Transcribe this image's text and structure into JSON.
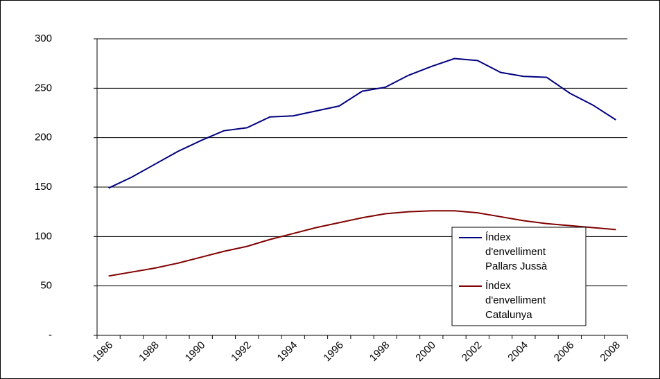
{
  "chart_data": {
    "type": "line",
    "categories": [
      "1986",
      null,
      "1988",
      null,
      "1990",
      null,
      "1992",
      null,
      "1994",
      null,
      "1996",
      null,
      "1998",
      null,
      "2000",
      null,
      "2002",
      null,
      "2004",
      null,
      "2006",
      null,
      "2008"
    ],
    "series": [
      {
        "name": "Índex d'envelliment Pallars Jussà",
        "color": "#000080",
        "values": [
          149,
          160,
          173,
          186,
          197,
          207,
          210,
          221,
          222,
          227,
          232,
          247,
          251,
          263,
          272,
          280,
          278,
          266,
          262,
          261,
          245,
          233,
          218
        ]
      },
      {
        "name": "Índex d'envelliment Catalunya",
        "color": "#800000",
        "values": [
          60,
          64,
          68,
          73,
          79,
          85,
          90,
          97,
          103,
          109,
          114,
          119,
          123,
          125,
          126,
          126,
          124,
          120,
          116,
          113,
          111,
          109,
          107
        ]
      }
    ],
    "ylim": [
      0,
      300
    ],
    "yticks": [
      {
        "value": 0,
        "label": "-"
      },
      50,
      100,
      150,
      200,
      250,
      300
    ],
    "grid": true,
    "legend": "right"
  }
}
